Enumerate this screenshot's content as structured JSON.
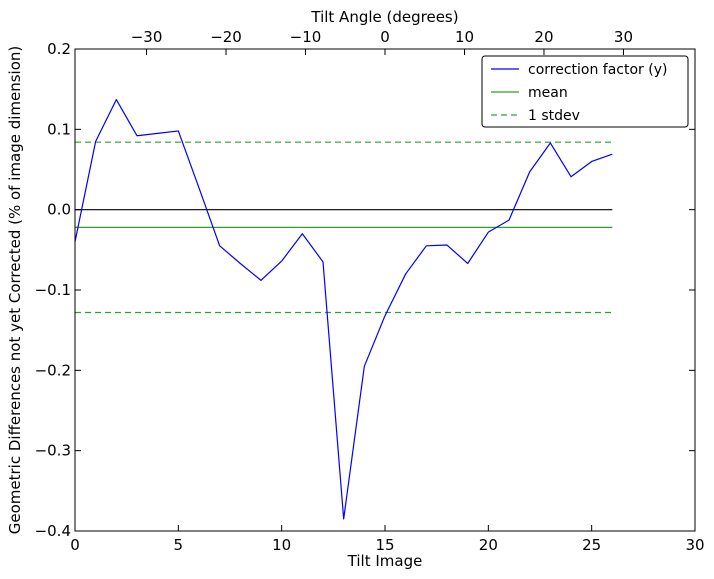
{
  "chart_data": {
    "type": "line",
    "xlabel": "Tilt Image",
    "ylabel": "Geometric Differences not yet Corrected (% of image dimension)",
    "top_xlabel": "Tilt Angle (degrees)",
    "xlim": [
      0,
      30
    ],
    "ylim": [
      -0.4,
      0.2
    ],
    "top_xlim": [
      -39,
      39
    ],
    "x_ticks": [
      0,
      5,
      10,
      15,
      20,
      25,
      30
    ],
    "x_tick_labels": [
      "0",
      "5",
      "10",
      "15",
      "20",
      "25",
      "30"
    ],
    "y_ticks": [
      -0.4,
      -0.3,
      -0.2,
      -0.1,
      0.0,
      0.1,
      0.2
    ],
    "y_tick_labels": [
      "−0.4",
      "−0.3",
      "−0.2",
      "−0.1",
      "0.0",
      "0.1",
      "0.2"
    ],
    "top_ticks": [
      -30,
      -20,
      -10,
      0,
      10,
      20,
      30
    ],
    "top_tick_labels": [
      "−30",
      "−20",
      "−10",
      "0",
      "10",
      "20",
      "30"
    ],
    "grid": false,
    "legend_position": "top-right",
    "series": [
      {
        "name": "correction factor (y)",
        "style": "solid",
        "color": "#0000ff",
        "x": [
          0,
          1,
          2,
          3,
          4,
          5,
          6,
          7,
          8,
          9,
          10,
          11,
          12,
          13,
          14,
          15,
          16,
          17,
          18,
          19,
          20,
          21,
          22,
          23,
          24,
          25,
          26
        ],
        "values": [
          -0.04,
          0.085,
          0.137,
          0.092,
          0.095,
          0.098,
          0.027,
          -0.045,
          -0.067,
          -0.088,
          -0.064,
          -0.03,
          -0.065,
          -0.385,
          -0.195,
          -0.132,
          -0.08,
          -0.045,
          -0.044,
          -0.067,
          -0.028,
          -0.013,
          0.047,
          0.083,
          0.041,
          0.06,
          0.069
        ]
      },
      {
        "name": "mean",
        "style": "solid",
        "color": "#2ca02c",
        "x": [
          0,
          26
        ],
        "values": [
          -0.022,
          -0.022
        ]
      },
      {
        "name": "1 stdev",
        "style": "dashed",
        "color": "#2ca02c",
        "x": [
          0,
          26
        ],
        "values": [
          0.084,
          0.084
        ],
        "x_lower": [
          0,
          26
        ],
        "values_lower": [
          -0.128,
          -0.128
        ]
      }
    ],
    "reference_line": {
      "y": 0.0,
      "x": [
        0,
        26
      ],
      "color": "#000000"
    }
  }
}
